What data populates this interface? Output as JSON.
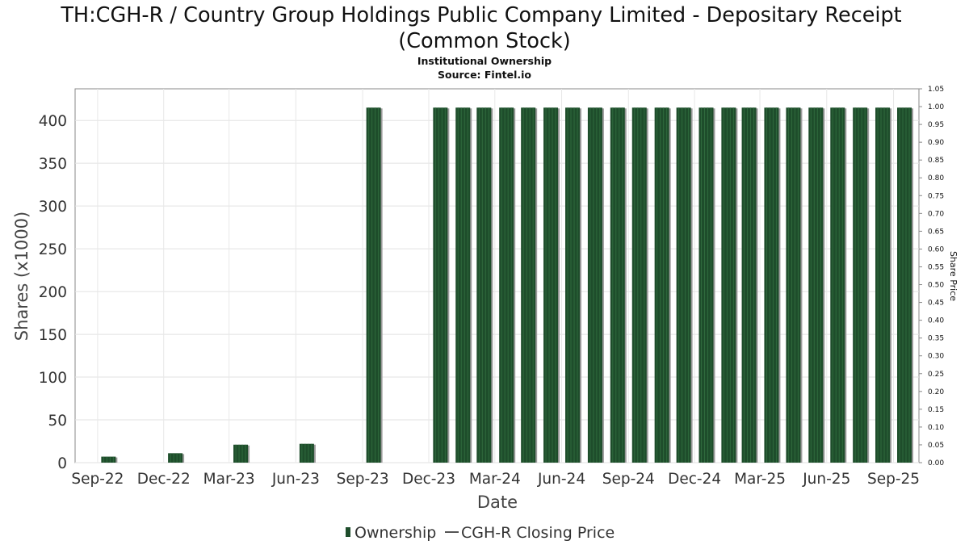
{
  "chart_data": {
    "type": "bar",
    "title_line1": "TH:CGH-R / Country Group Holdings Public Company Limited - Depositary Receipt",
    "title_line2": "(Common Stock)",
    "subtitle": "Institutional Ownership",
    "source": "Source: Fintel.io",
    "xlabel": "Date",
    "ylabel": "Shares (x1000)",
    "y2label": "Share Price",
    "ylim": [
      0,
      437
    ],
    "y2lim": [
      0,
      1.05
    ],
    "yticks": [
      "0",
      "50",
      "100",
      "150",
      "200",
      "250",
      "300",
      "350",
      "400"
    ],
    "y2ticks": [
      "0.00",
      "0.05",
      "0.10",
      "0.15",
      "0.20",
      "0.25",
      "0.30",
      "0.35",
      "0.40",
      "0.45",
      "0.50",
      "0.55",
      "0.60",
      "0.65",
      "0.70",
      "0.75",
      "0.80",
      "0.85",
      "0.90",
      "0.95",
      "1.00",
      "1.05"
    ],
    "xtick_labels": [
      "Sep-22",
      "Dec-22",
      "Mar-23",
      "Jun-23",
      "Sep-23",
      "Dec-23",
      "Mar-24",
      "Jun-24",
      "Sep-24",
      "Dec-24",
      "Mar-25",
      "Jun-25",
      "Sep-25"
    ],
    "xlim": [
      "2022-08-15",
      "2025-10-20"
    ],
    "series": [
      {
        "name": "Ownership",
        "color": "#1e4d2b",
        "points": [
          {
            "date": "2022-09-30",
            "value": 7
          },
          {
            "date": "2022-12-31",
            "value": 11
          },
          {
            "date": "2023-03-31",
            "value": 21
          },
          {
            "date": "2023-06-30",
            "value": 22
          },
          {
            "date": "2023-09-30",
            "value": 415
          },
          {
            "date": "2023-12-31",
            "value": 415
          },
          {
            "date": "2024-01-31",
            "value": 415
          },
          {
            "date": "2024-02-29",
            "value": 415
          },
          {
            "date": "2024-03-31",
            "value": 415
          },
          {
            "date": "2024-04-30",
            "value": 415
          },
          {
            "date": "2024-05-31",
            "value": 415
          },
          {
            "date": "2024-06-30",
            "value": 415
          },
          {
            "date": "2024-07-31",
            "value": 415
          },
          {
            "date": "2024-08-31",
            "value": 415
          },
          {
            "date": "2024-09-30",
            "value": 415
          },
          {
            "date": "2024-10-31",
            "value": 415
          },
          {
            "date": "2024-11-30",
            "value": 415
          },
          {
            "date": "2024-12-31",
            "value": 415
          },
          {
            "date": "2025-01-31",
            "value": 415
          },
          {
            "date": "2025-02-28",
            "value": 415
          },
          {
            "date": "2025-03-31",
            "value": 415
          },
          {
            "date": "2025-04-30",
            "value": 415
          },
          {
            "date": "2025-05-31",
            "value": 415
          },
          {
            "date": "2025-06-30",
            "value": 415
          },
          {
            "date": "2025-07-31",
            "value": 415
          },
          {
            "date": "2025-08-31",
            "value": 415
          },
          {
            "date": "2025-09-30",
            "value": 415
          }
        ]
      },
      {
        "name": "CGH-R Closing Price",
        "color": "#555555",
        "points": []
      }
    ],
    "grid": true,
    "legend_position": "bottom"
  }
}
